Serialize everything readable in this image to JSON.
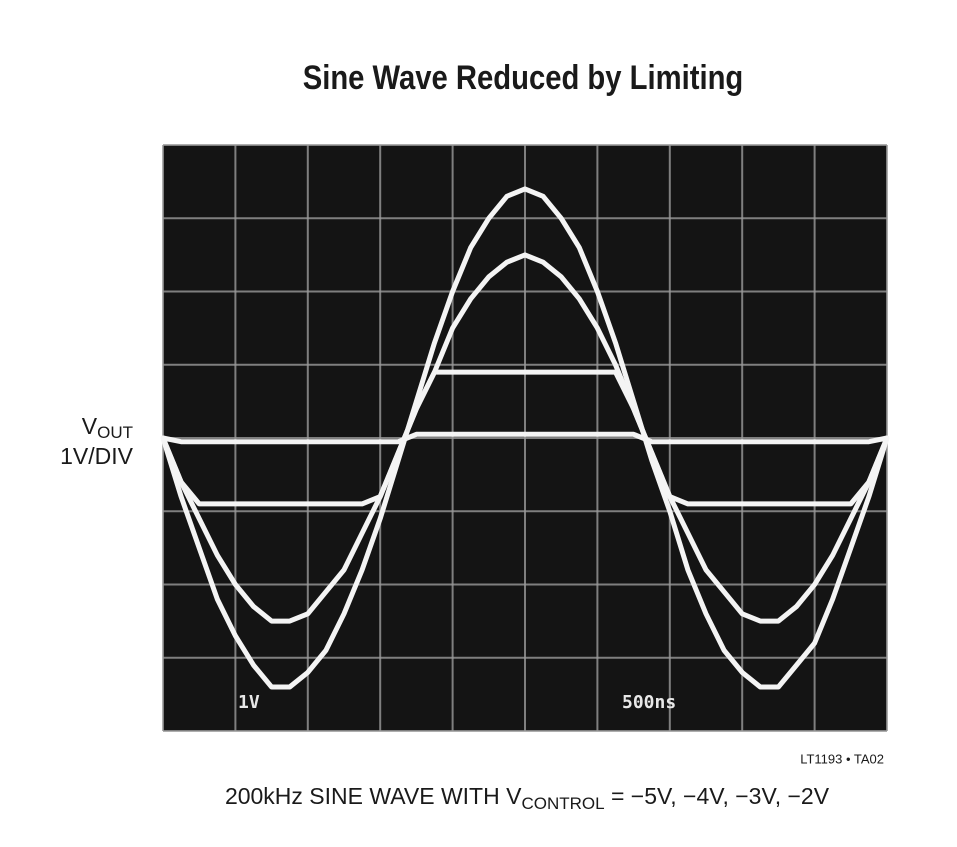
{
  "chart_data": {
    "type": "line",
    "title": "Sine Wave Reduced by Limiting",
    "y_label": {
      "main": "V",
      "sub": "OUT",
      "scale": "1V/DIV"
    },
    "screen_labels": {
      "volts": "1V",
      "time": "500ns"
    },
    "figure_id": "LT1193 • TA02",
    "caption": {
      "pre": "200kHz SINE WAVE WITH V",
      "sub": "CONTROL",
      "post": " = −5V, −4V, −3V, −2V"
    },
    "x": [
      0,
      125,
      250,
      375,
      500,
      625,
      750,
      875,
      1000,
      1125,
      1250,
      1375,
      1500,
      1625,
      1750,
      1875,
      2000,
      2125,
      2250,
      2375,
      2500,
      2625,
      2750,
      2875,
      3000,
      3125,
      3250,
      3375,
      3500,
      3625,
      3750,
      3875,
      4000,
      4125,
      4250,
      4375,
      4500,
      4625,
      4750,
      4875,
      5000
    ],
    "xlim": [
      0,
      5000
    ],
    "xticks": [
      0,
      500,
      1000,
      1500,
      2000,
      2500,
      3000,
      3500,
      4000,
      4500,
      5000
    ],
    "ylim": [
      -4,
      4
    ],
    "yticks": [
      -4,
      -3,
      -2,
      -1,
      0,
      1,
      2,
      3,
      4
    ],
    "grid": true,
    "background": "#141414",
    "series": [
      {
        "color": "#f4f4f4",
        "values": [
          0.0,
          -0.8,
          -1.5,
          -2.2,
          -2.7,
          -3.1,
          -3.4,
          -3.4,
          -3.2,
          -2.9,
          -2.4,
          -1.8,
          -1.1,
          -0.3,
          0.5,
          1.3,
          2.0,
          2.6,
          3.0,
          3.3,
          3.4,
          3.3,
          3.0,
          2.6,
          2.0,
          1.3,
          0.5,
          -0.3,
          -1.0,
          -1.8,
          -2.4,
          -2.9,
          -3.2,
          -3.4,
          -3.4,
          -3.1,
          -2.8,
          -2.2,
          -1.5,
          -0.8,
          0.0
        ]
      },
      {
        "color": "#f4f4f4",
        "values": [
          0.0,
          -0.6,
          -1.1,
          -1.6,
          -2.0,
          -2.3,
          -2.5,
          -2.5,
          -2.4,
          -2.1,
          -1.8,
          -1.3,
          -0.8,
          -0.2,
          0.4,
          0.9,
          1.5,
          1.9,
          2.2,
          2.4,
          2.5,
          2.4,
          2.2,
          1.9,
          1.5,
          1.0,
          0.4,
          -0.2,
          -0.8,
          -1.3,
          -1.8,
          -2.1,
          -2.4,
          -2.5,
          -2.5,
          -2.3,
          -2.0,
          -1.6,
          -1.1,
          -0.6,
          0.0
        ]
      },
      {
        "color": "#f4f4f4",
        "values": [
          0.0,
          -0.6,
          -0.9,
          -0.9,
          -0.9,
          -0.9,
          -0.9,
          -0.9,
          -0.9,
          -0.9,
          -0.9,
          -0.9,
          -0.8,
          -0.2,
          0.4,
          0.9,
          0.9,
          0.9,
          0.9,
          0.9,
          0.9,
          0.9,
          0.9,
          0.9,
          0.9,
          0.9,
          0.4,
          -0.2,
          -0.8,
          -0.9,
          -0.9,
          -0.9,
          -0.9,
          -0.9,
          -0.9,
          -0.9,
          -0.9,
          -0.9,
          -0.9,
          -0.6,
          0.0
        ]
      },
      {
        "color": "#f4f4f4",
        "values": [
          0.0,
          -0.05,
          -0.05,
          -0.05,
          -0.05,
          -0.05,
          -0.05,
          -0.05,
          -0.05,
          -0.05,
          -0.05,
          -0.05,
          -0.05,
          -0.05,
          0.05,
          0.05,
          0.05,
          0.05,
          0.05,
          0.05,
          0.05,
          0.05,
          0.05,
          0.05,
          0.05,
          0.05,
          0.05,
          -0.05,
          -0.05,
          -0.05,
          -0.05,
          -0.05,
          -0.05,
          -0.05,
          -0.05,
          -0.05,
          -0.05,
          -0.05,
          -0.05,
          -0.05,
          0.0
        ]
      }
    ]
  }
}
